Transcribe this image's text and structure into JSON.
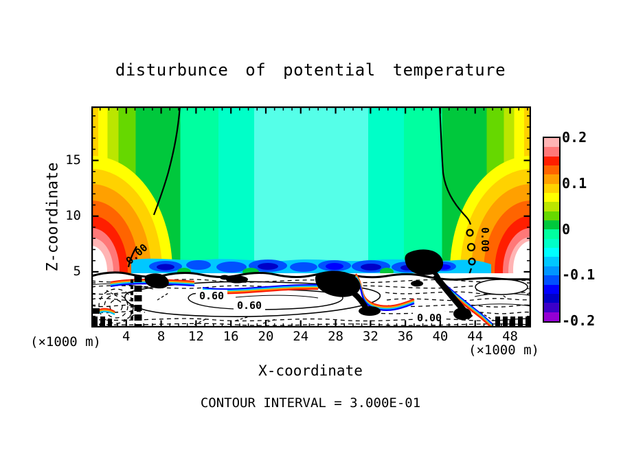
{
  "title": "disturbunce of potential temperature",
  "axes": {
    "x": {
      "label": "X-coordinate",
      "unit": "(×1000 m)"
    },
    "z": {
      "label": "Z-coordinate",
      "unit": "(×1000 m)"
    }
  },
  "footer": {
    "contour_interval_text": "CONTOUR INTERVAL = 3.000E-01"
  },
  "colorbar": {
    "tick_labels": [
      "0.2",
      "0.1",
      "0",
      "-0.1",
      "-0.2"
    ],
    "min": -0.2,
    "max": 0.2,
    "n_bands": 20,
    "band_interval": 0.02,
    "palette_bottom_to_top": [
      "#9400D3",
      "#3C00C8",
      "#0000C8",
      "#0000FF",
      "#0050FF",
      "#0096FF",
      "#00C8FF",
      "#00FFFF",
      "#00FFC8",
      "#00FFA0",
      "#00C83C",
      "#66D800",
      "#BBE600",
      "#FFFF00",
      "#FFD200",
      "#FFA000",
      "#FF6400",
      "#FF1E00",
      "#FF7878",
      "#FFB4B4"
    ]
  },
  "colors": {
    "field_center_cyan": "#55FFE8",
    "background": "#FFFFFF",
    "line": "#000000"
  },
  "contour_labels": {
    "zero_left": "0.00",
    "zero_right": "0.00",
    "zero_bottom": "0.00",
    "sixty_upper": "0.60",
    "sixty_lower": "0.60"
  },
  "chart_data": {
    "type": "heatmap",
    "title": "disturbunce of potential temperature",
    "xlabel": "X-coordinate",
    "x_unit": "(×1000 m)",
    "ylabel": "Z-coordinate",
    "y_unit": "(×1000 m)",
    "x_range": [
      0,
      50.4
    ],
    "x_ticks": [
      4,
      8,
      12,
      16,
      20,
      24,
      28,
      32,
      36,
      40,
      44,
      48
    ],
    "x_minor_step": 1,
    "z_range": [
      0,
      19.85
    ],
    "z_ticks": [
      5,
      10,
      15
    ],
    "z_minor_step": 1,
    "value_range": [
      -0.2,
      0.2
    ],
    "fill_contour_interval": 0.02,
    "line_contour_interval": 0.3,
    "line_contour_interval_label": "3.000E-01",
    "colorbar_ticks": [
      0.2,
      0.1,
      0,
      -0.1,
      -0.2
    ],
    "labeled_contours": [
      {
        "value": 0.0,
        "label": "0.00",
        "location": "descends from top boundary near x=10, rotated along line"
      },
      {
        "value": 0.0,
        "label": "0.00",
        "location": "descends from top boundary near x=40, vertical along line"
      },
      {
        "value": 0.0,
        "label": "0.00",
        "location": "boundary-layer contour near x=37, z=1"
      },
      {
        "value": 0.6,
        "label": "0.60",
        "location": "closed loop in boundary layer near x=13, z=3"
      },
      {
        "value": 0.6,
        "label": "0.60",
        "location": "closed loop in boundary layer near x=17, z=2"
      }
    ],
    "features": [
      "Warm positive anomaly fans (>+0.2, white over-range cores) hug the left and right lateral boundaries below z≈9 km",
      "Broad weak negative anomaly (−0.02 to −0.08) fills the interior above z≈5 km, palest cyan in the centre column near x≈22",
      "Zero contours separate warm edge air from the cool interior, reaching the top boundary near x≈10 and x≈40 (×1000 m)",
      "Strong negative layer (−0.10 to −0.20, dark blue blobs) concentrated along z≈5 km",
      "Turbulent boundary layer below z≈5 km drawn with dense dashed (negative) and solid (positive) line contours at 0.3 interval",
      "Thin rainbow-coloured filaments mark sharp frontal gradients within the boundary layer"
    ],
    "legend_position": "right colorbar",
    "grid": false
  }
}
